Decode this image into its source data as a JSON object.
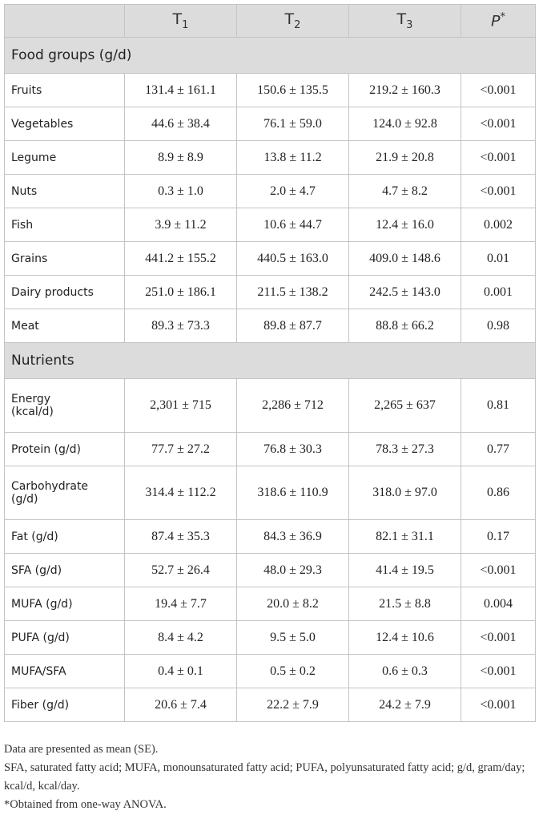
{
  "table": {
    "header": [
      {
        "text": "T",
        "sub": "1"
      },
      {
        "text": "T",
        "sub": "2"
      },
      {
        "text": "T",
        "sub": "3"
      },
      {
        "text": "P",
        "sup": "*"
      }
    ],
    "sections": [
      {
        "title": "Food groups (g/d)",
        "rows": [
          {
            "label": [
              "Fruits"
            ],
            "cells": [
              "131.4 ± 161.1",
              "150.6 ± 135.5",
              "219.2 ± 160.3",
              "<0.001"
            ]
          },
          {
            "label": [
              "Vegetables"
            ],
            "cells": [
              "44.6 ± 38.4",
              "76.1 ± 59.0",
              "124.0 ± 92.8",
              "<0.001"
            ]
          },
          {
            "label": [
              "Legume"
            ],
            "cells": [
              "8.9 ± 8.9",
              "13.8 ± 11.2",
              "21.9 ± 20.8",
              "<0.001"
            ]
          },
          {
            "label": [
              "Nuts"
            ],
            "cells": [
              "0.3 ± 1.0",
              "2.0 ± 4.7",
              "4.7 ± 8.2",
              "<0.001"
            ]
          },
          {
            "label": [
              "Fish"
            ],
            "cells": [
              "3.9 ± 11.2",
              "10.6 ± 44.7",
              "12.4 ± 16.0",
              "0.002"
            ]
          },
          {
            "label": [
              "Grains"
            ],
            "cells": [
              "441.2 ± 155.2",
              "440.5 ± 163.0",
              "409.0 ± 148.6",
              "0.01"
            ]
          },
          {
            "label": [
              "Dairy products"
            ],
            "cells": [
              "251.0 ± 186.1",
              "211.5 ± 138.2",
              "242.5 ± 143.0",
              "0.001"
            ]
          },
          {
            "label": [
              "Meat"
            ],
            "cells": [
              "89.3 ± 73.3",
              "89.8 ± 87.7",
              "88.8 ± 66.2",
              "0.98"
            ]
          }
        ]
      },
      {
        "title": "Nutrients",
        "rows": [
          {
            "label": [
              "Energy",
              "(kcal/d)"
            ],
            "cells": [
              "2,301 ± 715",
              "2,286 ± 712",
              "2,265 ± 637",
              "0.81"
            ]
          },
          {
            "label": [
              "Protein (g/d)"
            ],
            "cells": [
              "77.7 ± 27.2",
              "76.8 ± 30.3",
              "78.3 ± 27.3",
              "0.77"
            ]
          },
          {
            "label": [
              "Carbohydrate",
              "(g/d)"
            ],
            "cells": [
              "314.4 ± 112.2",
              "318.6 ± 110.9",
              "318.0 ± 97.0",
              "0.86"
            ]
          },
          {
            "label": [
              "Fat (g/d)"
            ],
            "cells": [
              "87.4 ± 35.3",
              "84.3 ± 36.9",
              "82.1 ± 31.1",
              "0.17"
            ]
          },
          {
            "label": [
              "SFA (g/d)"
            ],
            "cells": [
              "52.7 ± 26.4",
              "48.0 ± 29.3",
              "41.4 ± 19.5",
              "<0.001"
            ]
          },
          {
            "label": [
              "MUFA (g/d)"
            ],
            "cells": [
              "19.4 ± 7.7",
              "20.0 ± 8.2",
              "21.5 ± 8.8",
              "0.004"
            ]
          },
          {
            "label": [
              "PUFA (g/d)"
            ],
            "cells": [
              "8.4 ± 4.2",
              "9.5 ± 5.0",
              "12.4 ± 10.6",
              "<0.001"
            ]
          },
          {
            "label": [
              "MUFA/SFA"
            ],
            "cells": [
              "0.4 ± 0.1",
              "0.5 ± 0.2",
              "0.6 ± 0.3",
              "<0.001"
            ]
          },
          {
            "label": [
              "Fiber (g/d)"
            ],
            "cells": [
              "20.6 ± 7.4",
              "22.2 ± 7.9",
              "24.2 ± 7.9",
              "<0.001"
            ]
          }
        ]
      }
    ]
  },
  "footnotes": [
    "Data are presented as mean (SE).",
    "SFA, saturated fatty acid; MUFA, monounsaturated fatty acid; PUFA, polyunsaturated fatty acid; g/d, gram/day; kcal/d, kcal/day.",
    "*Obtained from one-way ANOVA."
  ]
}
